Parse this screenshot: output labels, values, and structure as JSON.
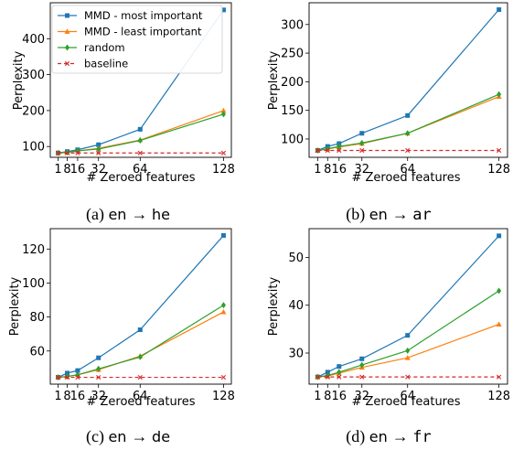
{
  "chart_data": [
    {
      "type": "line",
      "caption": {
        "prefix": "(a) ",
        "src": "en",
        "arrow": "→",
        "tgt": "he",
        "tgt_mono": false
      },
      "xlabel": "# Zeroed features",
      "ylabel": "Perplexity",
      "x": [
        1,
        8,
        16,
        32,
        64,
        128
      ],
      "xticks": [
        1,
        8,
        16,
        32,
        64,
        128
      ],
      "xtick_labels": [
        "1",
        "8",
        "16",
        "32",
        "64",
        "128"
      ],
      "ylim": [
        70,
        500
      ],
      "yticks": [
        100,
        200,
        300,
        400
      ],
      "legend": "upper-left",
      "series": [
        {
          "name": "MMD - most important",
          "values": [
            82,
            86,
            91,
            105,
            148,
            480
          ]
        },
        {
          "name": "MMD - least important",
          "values": [
            82,
            84,
            88,
            95,
            118,
            200
          ]
        },
        {
          "name": "random",
          "values": [
            82,
            84,
            88,
            93,
            117,
            190
          ]
        },
        {
          "name": "baseline",
          "values": [
            82,
            82,
            82,
            82,
            82,
            82
          ]
        }
      ]
    },
    {
      "type": "line",
      "caption": {
        "prefix": "(b) ",
        "src": "en",
        "arrow": "→",
        "tgt": "ar",
        "tgt_mono": true
      },
      "xlabel": "# Zeroed features",
      "ylabel": "Perplexity",
      "x": [
        1,
        8,
        16,
        32,
        64,
        128
      ],
      "xticks": [
        1,
        8,
        16,
        32,
        64,
        128
      ],
      "xtick_labels": [
        "1",
        "8",
        "16",
        "32",
        "64",
        "128"
      ],
      "ylim": [
        68,
        338
      ],
      "yticks": [
        100,
        150,
        200,
        250,
        300
      ],
      "series": [
        {
          "name": "MMD - most important",
          "values": [
            80,
            87,
            92,
            110,
            141,
            326
          ]
        },
        {
          "name": "MMD - least important",
          "values": [
            80,
            83,
            86,
            92,
            110,
            174
          ]
        },
        {
          "name": "random",
          "values": [
            80,
            83,
            87,
            93,
            110,
            178
          ]
        },
        {
          "name": "baseline",
          "values": [
            80,
            80,
            80,
            80,
            80,
            80
          ]
        }
      ]
    },
    {
      "type": "line",
      "caption": {
        "prefix": "(c) ",
        "src": "en",
        "arrow": "→",
        "tgt": "de",
        "tgt_mono": false
      },
      "xlabel": "# Zeroed features",
      "ylabel": "Perplexity",
      "x": [
        1,
        8,
        16,
        32,
        64,
        128
      ],
      "xticks": [
        1,
        8,
        16,
        32,
        64,
        128
      ],
      "xtick_labels": [
        "1",
        "8",
        "16",
        "32",
        "64",
        "128"
      ],
      "ylim": [
        40.5,
        132
      ],
      "yticks": [
        60,
        80,
        100,
        120
      ],
      "series": [
        {
          "name": "MMD - most important",
          "values": [
            44.5,
            47,
            48.5,
            56,
            72.5,
            128
          ]
        },
        {
          "name": "MMD - least important",
          "values": [
            44.5,
            45,
            46,
            49,
            57,
            83
          ]
        },
        {
          "name": "random",
          "values": [
            44.5,
            45,
            46,
            49.5,
            56.5,
            87
          ]
        },
        {
          "name": "baseline",
          "values": [
            44.5,
            44.5,
            44.5,
            44.5,
            44.5,
            44.5
          ]
        }
      ]
    },
    {
      "type": "line",
      "caption": {
        "prefix": "(d) ",
        "src": "en",
        "arrow": "→",
        "tgt": "fr",
        "tgt_mono": true
      },
      "xlabel": "# Zeroed features",
      "ylabel": "Perplexity",
      "x": [
        1,
        8,
        16,
        32,
        64,
        128
      ],
      "xticks": [
        1,
        8,
        16,
        32,
        64,
        128
      ],
      "xtick_labels": [
        "1",
        "8",
        "16",
        "32",
        "64",
        "128"
      ],
      "ylim": [
        23.5,
        56
      ],
      "yticks": [
        30,
        40,
        50
      ],
      "series": [
        {
          "name": "MMD - most important",
          "values": [
            25,
            26,
            27.2,
            28.8,
            33.7,
            54.5
          ]
        },
        {
          "name": "MMD - least important",
          "values": [
            25,
            25.2,
            25.8,
            27,
            29,
            36
          ]
        },
        {
          "name": "random",
          "values": [
            25,
            25.3,
            26,
            27.5,
            30.5,
            43
          ]
        },
        {
          "name": "baseline",
          "values": [
            25,
            25,
            25,
            25,
            25,
            25
          ]
        }
      ]
    }
  ],
  "series_styles": [
    {
      "color": "#1f77b4",
      "marker": "square",
      "dash": ""
    },
    {
      "color": "#ff7f0e",
      "marker": "triangle",
      "dash": ""
    },
    {
      "color": "#2ca02c",
      "marker": "diamond",
      "dash": ""
    },
    {
      "color": "#d62728",
      "marker": "x",
      "dash": "4,3"
    }
  ]
}
